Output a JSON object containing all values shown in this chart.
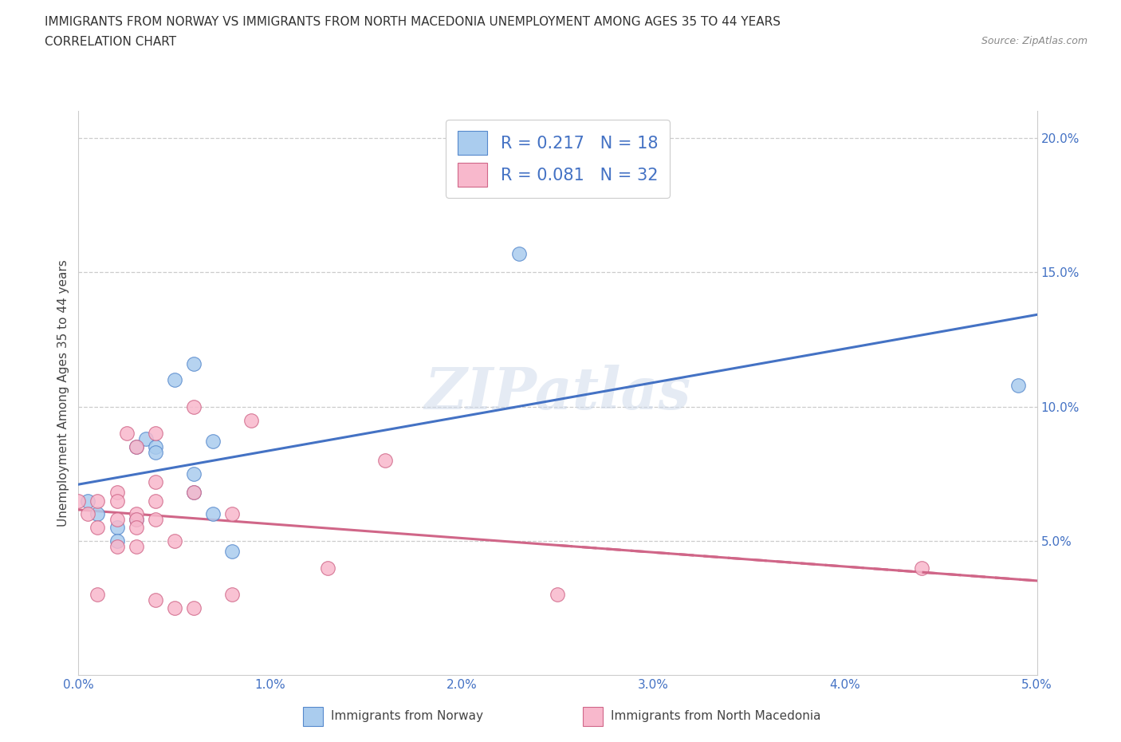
{
  "title_line1": "IMMIGRANTS FROM NORWAY VS IMMIGRANTS FROM NORTH MACEDONIA UNEMPLOYMENT AMONG AGES 35 TO 44 YEARS",
  "title_line2": "CORRELATION CHART",
  "source": "Source: ZipAtlas.com",
  "ylabel": "Unemployment Among Ages 35 to 44 years",
  "xlabel_norway": "Immigrants from Norway",
  "xlabel_macedonia": "Immigrants from North Macedonia",
  "xlim": [
    0.0,
    0.05
  ],
  "ylim": [
    0.0,
    0.21
  ],
  "yticks": [
    0.05,
    0.1,
    0.15,
    0.2
  ],
  "ytick_labels": [
    "5.0%",
    "10.0%",
    "15.0%",
    "20.0%"
  ],
  "xticks": [
    0.0,
    0.01,
    0.02,
    0.03,
    0.04,
    0.05
  ],
  "xtick_labels": [
    "0.0%",
    "1.0%",
    "2.0%",
    "3.0%",
    "4.0%",
    "5.0%"
  ],
  "norway_color": "#aaccee",
  "norway_edge_color": "#5588cc",
  "norway_line_color": "#4472c4",
  "macedonia_color": "#f8b8cc",
  "macedonia_edge_color": "#d06688",
  "macedonia_line_color": "#d06688",
  "tick_label_color": "#4472c4",
  "norway_R": "0.217",
  "norway_N": "18",
  "macedonia_R": "0.081",
  "macedonia_N": "32",
  "watermark": "ZIPatlas",
  "norway_x": [
    0.0005,
    0.001,
    0.002,
    0.002,
    0.003,
    0.003,
    0.0035,
    0.004,
    0.004,
    0.005,
    0.006,
    0.006,
    0.006,
    0.007,
    0.007,
    0.008,
    0.023,
    0.049
  ],
  "norway_y": [
    0.065,
    0.06,
    0.055,
    0.05,
    0.058,
    0.085,
    0.088,
    0.085,
    0.083,
    0.11,
    0.068,
    0.075,
    0.116,
    0.087,
    0.06,
    0.046,
    0.157,
    0.108
  ],
  "macedonia_x": [
    0.0,
    0.0005,
    0.001,
    0.001,
    0.001,
    0.002,
    0.002,
    0.002,
    0.002,
    0.0025,
    0.003,
    0.003,
    0.003,
    0.003,
    0.003,
    0.004,
    0.004,
    0.004,
    0.004,
    0.004,
    0.005,
    0.005,
    0.006,
    0.006,
    0.006,
    0.008,
    0.008,
    0.009,
    0.013,
    0.016,
    0.025,
    0.044
  ],
  "macedonia_y": [
    0.065,
    0.06,
    0.065,
    0.055,
    0.03,
    0.068,
    0.058,
    0.048,
    0.065,
    0.09,
    0.085,
    0.06,
    0.058,
    0.055,
    0.048,
    0.09,
    0.072,
    0.065,
    0.058,
    0.028,
    0.05,
    0.025,
    0.1,
    0.068,
    0.025,
    0.06,
    0.03,
    0.095,
    0.04,
    0.08,
    0.03,
    0.04
  ],
  "grid_color": "#cccccc",
  "spine_color": "#cccccc"
}
